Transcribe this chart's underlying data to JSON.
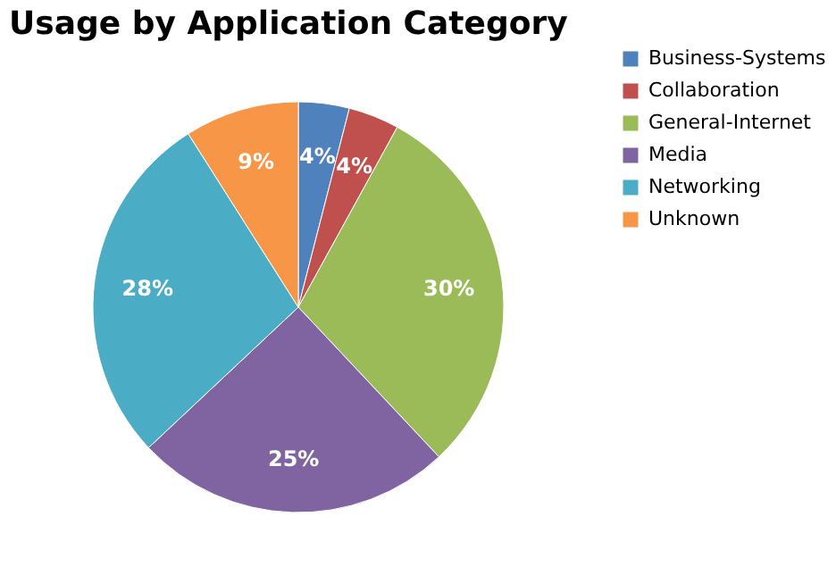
{
  "chart_data": {
    "type": "pie",
    "title": "Usage by Application Category",
    "categories": [
      "Business-Systems",
      "Collaboration",
      "General-Internet",
      "Media",
      "Networking",
      "Unknown"
    ],
    "values": [
      4,
      4,
      30,
      25,
      28,
      9
    ],
    "colors": [
      "#4f81bd",
      "#c0504d",
      "#9bbb59",
      "#8064a2",
      "#4bacc6",
      "#f79646"
    ],
    "value_labels": [
      "4%",
      "4%",
      "30%",
      "25%",
      "28%",
      "9%"
    ],
    "legend": "right"
  }
}
